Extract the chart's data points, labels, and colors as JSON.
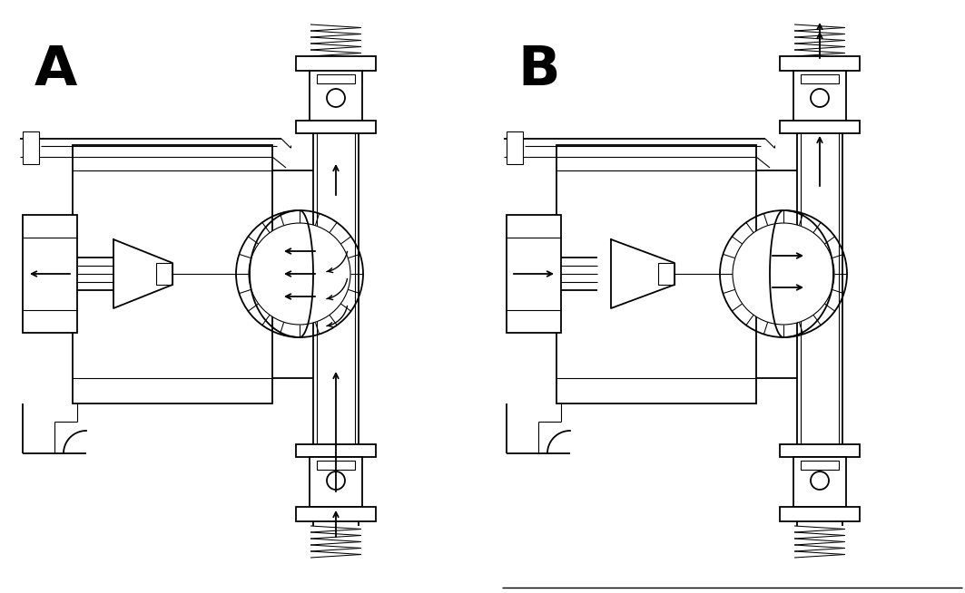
{
  "label_A": "A",
  "label_B": "B",
  "bg_color": "#ffffff",
  "line_color": "#000000",
  "fig_width": 10.63,
  "fig_height": 6.54
}
